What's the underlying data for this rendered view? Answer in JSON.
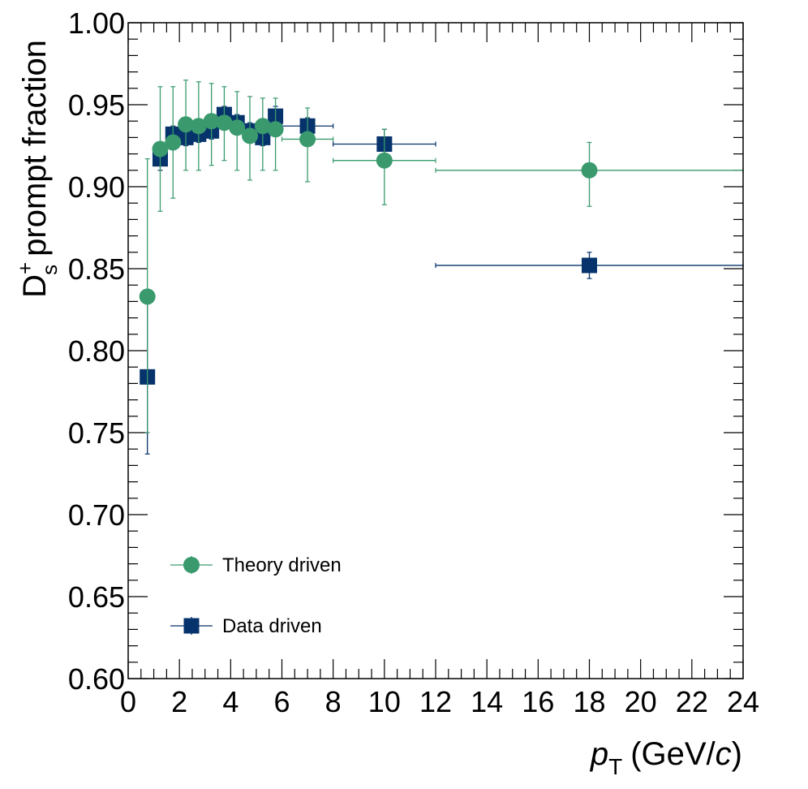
{
  "chart_data": {
    "type": "scatter",
    "xlabel": {
      "var": "p",
      "sub": "T",
      "unit_pre": "(GeV/",
      "unit_var": "c",
      "unit_post": ")"
    },
    "ylabel": {
      "base": "D",
      "sup": "+",
      "sub": "s",
      "text": "prompt fraction"
    },
    "xlim": [
      0,
      24
    ],
    "ylim": [
      0.6,
      1.0
    ],
    "xticks": [
      0,
      2,
      4,
      6,
      8,
      10,
      12,
      14,
      16,
      18,
      20,
      22,
      24
    ],
    "xtick_labels": [
      "0",
      "2",
      "4",
      "6",
      "8",
      "10",
      "12",
      "14",
      "16",
      "18",
      "20",
      "22",
      "24"
    ],
    "yticks": [
      0.6,
      0.65,
      0.7,
      0.75,
      0.8,
      0.85,
      0.9,
      0.95,
      1.0
    ],
    "ytick_labels": [
      "0.60",
      "0.65",
      "0.70",
      "0.75",
      "0.80",
      "0.85",
      "0.90",
      "0.95",
      "1.00"
    ],
    "grid": false,
    "legend_position": "bottom-left",
    "series": [
      {
        "name": "Theory driven",
        "marker": "circle",
        "color": "#3a9a6e",
        "points": [
          {
            "x": 0.75,
            "xlo": 0.5,
            "xhi": 1.0,
            "y": 0.833,
            "ylo": 0.75,
            "yhi": 0.917
          },
          {
            "x": 1.25,
            "xlo": 1.0,
            "xhi": 1.5,
            "y": 0.923,
            "ylo": 0.885,
            "yhi": 0.961
          },
          {
            "x": 1.75,
            "xlo": 1.5,
            "xhi": 2.0,
            "y": 0.927,
            "ylo": 0.893,
            "yhi": 0.961
          },
          {
            "x": 2.25,
            "xlo": 2.0,
            "xhi": 2.5,
            "y": 0.938,
            "ylo": 0.91,
            "yhi": 0.965
          },
          {
            "x": 2.75,
            "xlo": 2.5,
            "xhi": 3.0,
            "y": 0.937,
            "ylo": 0.91,
            "yhi": 0.964
          },
          {
            "x": 3.25,
            "xlo": 3.0,
            "xhi": 3.5,
            "y": 0.94,
            "ylo": 0.913,
            "yhi": 0.963
          },
          {
            "x": 3.75,
            "xlo": 3.5,
            "xhi": 4.0,
            "y": 0.939,
            "ylo": 0.916,
            "yhi": 0.961
          },
          {
            "x": 4.25,
            "xlo": 4.0,
            "xhi": 4.5,
            "y": 0.936,
            "ylo": 0.91,
            "yhi": 0.958
          },
          {
            "x": 4.75,
            "xlo": 4.5,
            "xhi": 5.0,
            "y": 0.931,
            "ylo": 0.904,
            "yhi": 0.955
          },
          {
            "x": 5.25,
            "xlo": 5.0,
            "xhi": 5.5,
            "y": 0.937,
            "ylo": 0.91,
            "yhi": 0.954
          },
          {
            "x": 5.75,
            "xlo": 5.5,
            "xhi": 6.0,
            "y": 0.935,
            "ylo": 0.91,
            "yhi": 0.954
          },
          {
            "x": 7.0,
            "xlo": 6.0,
            "xhi": 8.0,
            "y": 0.929,
            "ylo": 0.903,
            "yhi": 0.948
          },
          {
            "x": 10.0,
            "xlo": 8.0,
            "xhi": 12.0,
            "y": 0.916,
            "ylo": 0.889,
            "yhi": 0.935
          },
          {
            "x": 18.0,
            "xlo": 12.0,
            "xhi": 24.0,
            "y": 0.91,
            "ylo": 0.888,
            "yhi": 0.927
          }
        ]
      },
      {
        "name": "Data driven",
        "marker": "square",
        "color": "#06336b",
        "points": [
          {
            "x": 0.75,
            "xlo": 0.5,
            "xhi": 1.0,
            "y": 0.784,
            "ylo": 0.737,
            "yhi": 0.831
          },
          {
            "x": 1.25,
            "xlo": 1.0,
            "xhi": 1.5,
            "y": 0.917,
            "ylo": 0.91,
            "yhi": 0.924
          },
          {
            "x": 1.75,
            "xlo": 1.5,
            "xhi": 2.0,
            "y": 0.932,
            "ylo": 0.927,
            "yhi": 0.937
          },
          {
            "x": 2.25,
            "xlo": 2.0,
            "xhi": 2.5,
            "y": 0.93,
            "ylo": 0.925,
            "yhi": 0.935
          },
          {
            "x": 2.75,
            "xlo": 2.5,
            "xhi": 3.0,
            "y": 0.932,
            "ylo": 0.927,
            "yhi": 0.937
          },
          {
            "x": 3.25,
            "xlo": 3.0,
            "xhi": 3.5,
            "y": 0.934,
            "ylo": 0.929,
            "yhi": 0.939
          },
          {
            "x": 3.75,
            "xlo": 3.5,
            "xhi": 4.0,
            "y": 0.944,
            "ylo": 0.939,
            "yhi": 0.949
          },
          {
            "x": 4.25,
            "xlo": 4.0,
            "xhi": 4.5,
            "y": 0.939,
            "ylo": 0.934,
            "yhi": 0.944
          },
          {
            "x": 4.75,
            "xlo": 4.5,
            "xhi": 5.0,
            "y": 0.934,
            "ylo": 0.929,
            "yhi": 0.939
          },
          {
            "x": 5.25,
            "xlo": 5.0,
            "xhi": 5.5,
            "y": 0.93,
            "ylo": 0.925,
            "yhi": 0.935
          },
          {
            "x": 5.75,
            "xlo": 5.5,
            "xhi": 6.0,
            "y": 0.943,
            "ylo": 0.937,
            "yhi": 0.949
          },
          {
            "x": 7.0,
            "xlo": 6.0,
            "xhi": 8.0,
            "y": 0.937,
            "ylo": 0.932,
            "yhi": 0.942
          },
          {
            "x": 10.0,
            "xlo": 8.0,
            "xhi": 12.0,
            "y": 0.926,
            "ylo": 0.917,
            "yhi": 0.935
          },
          {
            "x": 18.0,
            "xlo": 12.0,
            "xhi": 24.0,
            "y": 0.852,
            "ylo": 0.844,
            "yhi": 0.86
          }
        ]
      }
    ]
  }
}
